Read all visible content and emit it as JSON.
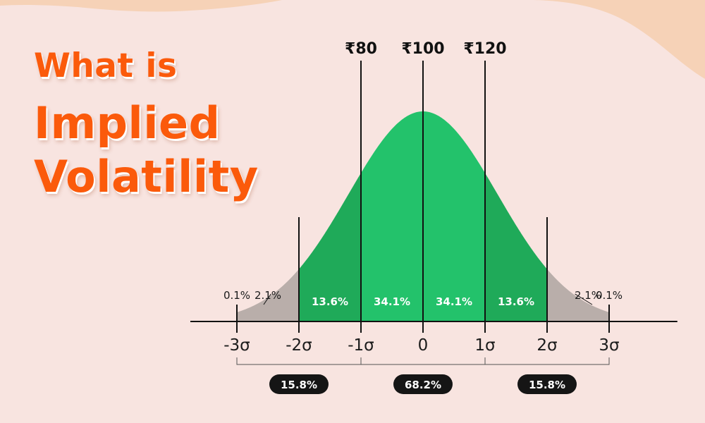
{
  "title": {
    "line1": "What is",
    "line2": "Implied",
    "line3": "Volatility"
  },
  "colors": {
    "background": "#f8e4e0",
    "blob": "#f6d2b7",
    "title": "#fb5a0b",
    "green_light": "#23c26b",
    "green_dark": "#1faa59",
    "tail_gray": "#b9aeaa",
    "ink": "#111111",
    "pill": "#151515"
  },
  "chart_data": {
    "type": "area",
    "distribution": "normal",
    "x_ticks": [
      {
        "value": -3,
        "label": "-3σ"
      },
      {
        "value": -2,
        "label": "-2σ"
      },
      {
        "value": -1,
        "label": "-1σ"
      },
      {
        "value": 0,
        "label": "0"
      },
      {
        "value": 1,
        "label": "1σ"
      },
      {
        "value": 2,
        "label": "2σ"
      },
      {
        "value": 3,
        "label": "3σ"
      }
    ],
    "price_markers": [
      {
        "sigma": -1,
        "label": "₹80"
      },
      {
        "sigma": 0,
        "label": "₹100"
      },
      {
        "sigma": 1,
        "label": "₹120"
      }
    ],
    "bands": [
      {
        "from": -3,
        "to": -2,
        "label": "2.1%",
        "tone": "tail",
        "label_pos": "outside"
      },
      {
        "from": -2,
        "to": -1,
        "label": "13.6%",
        "tone": "dark"
      },
      {
        "from": -1,
        "to": 0,
        "label": "34.1%",
        "tone": "light"
      },
      {
        "from": 0,
        "to": 1,
        "label": "34.1%",
        "tone": "light"
      },
      {
        "from": 1,
        "to": 2,
        "label": "13.6%",
        "tone": "dark"
      },
      {
        "from": 2,
        "to": 3,
        "label": "2.1%",
        "tone": "tail",
        "label_pos": "outside"
      }
    ],
    "tail_extremes": [
      {
        "at": -3,
        "label": "0.1%"
      },
      {
        "at": 3,
        "label": "0.1%"
      }
    ],
    "brackets": [
      {
        "from": -3,
        "to": -1,
        "label": "15.8%"
      },
      {
        "from": -1,
        "to": 1,
        "label": "68.2%"
      },
      {
        "from": 1,
        "to": 3,
        "label": "15.8%"
      }
    ],
    "xlim": [
      -3.75,
      4.1
    ]
  }
}
